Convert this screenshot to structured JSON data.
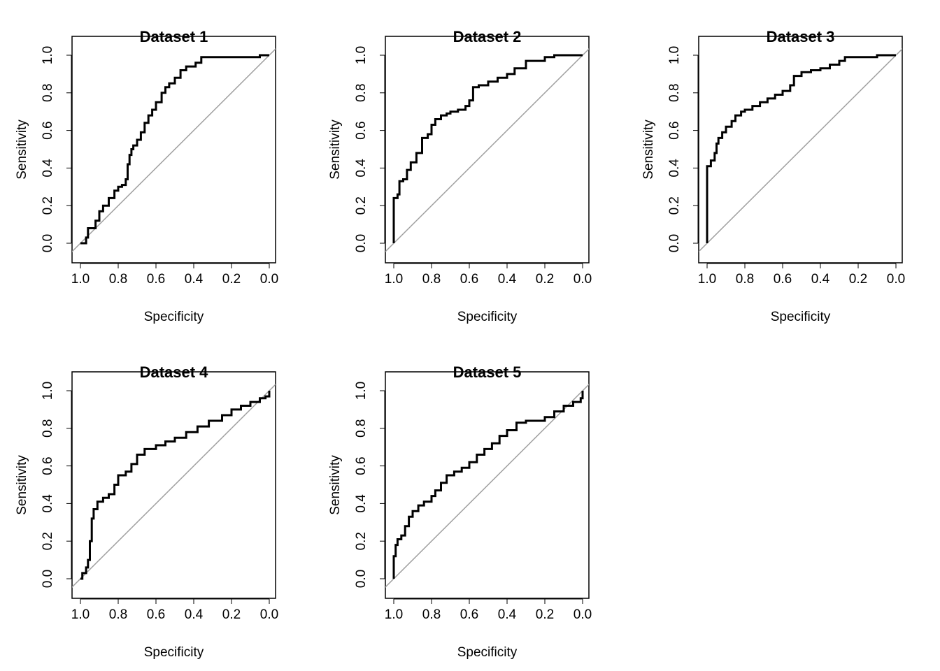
{
  "chart_data": [
    {
      "type": "line",
      "title": "Dataset 1",
      "xlabel": "Specificity",
      "ylabel": "Sensitivity",
      "xlim": [
        1.0,
        0.0
      ],
      "ylim": [
        0.0,
        1.0
      ],
      "x_ticks": [
        "1.0",
        "0.8",
        "0.6",
        "0.4",
        "0.2",
        "0.0"
      ],
      "y_ticks": [
        "0.0",
        "0.2",
        "0.4",
        "0.6",
        "0.8",
        "1.0"
      ],
      "reference_line": "diagonal",
      "series": [
        {
          "x": [
            1.0,
            0.97,
            0.96,
            0.92,
            0.9,
            0.88,
            0.85,
            0.82,
            0.8,
            0.78,
            0.76,
            0.75,
            0.74,
            0.73,
            0.72,
            0.7,
            0.68,
            0.66,
            0.64,
            0.62,
            0.6,
            0.57,
            0.55,
            0.53,
            0.5,
            0.47,
            0.44,
            0.42,
            0.39,
            0.36,
            0.34,
            0.3,
            0.2,
            0.1,
            0.05,
            0.02,
            0.0
          ],
          "y": [
            0.0,
            0.03,
            0.08,
            0.12,
            0.17,
            0.2,
            0.24,
            0.28,
            0.3,
            0.31,
            0.34,
            0.42,
            0.47,
            0.5,
            0.52,
            0.55,
            0.59,
            0.64,
            0.68,
            0.71,
            0.75,
            0.8,
            0.83,
            0.85,
            0.88,
            0.92,
            0.94,
            0.94,
            0.96,
            0.99,
            0.99,
            0.99,
            0.99,
            0.99,
            1.0,
            1.0,
            1.0
          ]
        }
      ]
    },
    {
      "type": "line",
      "title": "Dataset 2",
      "xlabel": "Specificity",
      "ylabel": "Sensitivity",
      "xlim": [
        1.0,
        0.0
      ],
      "ylim": [
        0.0,
        1.0
      ],
      "x_ticks": [
        "1.0",
        "0.8",
        "0.6",
        "0.4",
        "0.2",
        "0.0"
      ],
      "y_ticks": [
        "0.0",
        "0.2",
        "0.4",
        "0.6",
        "0.8",
        "1.0"
      ],
      "reference_line": "diagonal",
      "series": [
        {
          "x": [
            1.0,
            1.0,
            0.98,
            0.97,
            0.95,
            0.93,
            0.91,
            0.88,
            0.85,
            0.82,
            0.8,
            0.78,
            0.75,
            0.72,
            0.7,
            0.66,
            0.62,
            0.6,
            0.58,
            0.55,
            0.5,
            0.45,
            0.4,
            0.36,
            0.3,
            0.2,
            0.15,
            0.05,
            0.0
          ],
          "y": [
            0.0,
            0.24,
            0.26,
            0.33,
            0.34,
            0.39,
            0.43,
            0.48,
            0.56,
            0.58,
            0.63,
            0.66,
            0.68,
            0.69,
            0.7,
            0.71,
            0.73,
            0.76,
            0.83,
            0.84,
            0.86,
            0.88,
            0.9,
            0.93,
            0.97,
            0.99,
            1.0,
            1.0,
            1.0
          ]
        }
      ]
    },
    {
      "type": "line",
      "title": "Dataset 3",
      "xlabel": "Specificity",
      "ylabel": "Sensitivity",
      "xlim": [
        1.0,
        0.0
      ],
      "ylim": [
        0.0,
        1.0
      ],
      "x_ticks": [
        "1.0",
        "0.8",
        "0.6",
        "0.4",
        "0.2",
        "0.0"
      ],
      "y_ticks": [
        "0.0",
        "0.2",
        "0.4",
        "0.6",
        "0.8",
        "1.0"
      ],
      "reference_line": "diagonal",
      "series": [
        {
          "x": [
            1.0,
            1.0,
            0.98,
            0.96,
            0.95,
            0.94,
            0.92,
            0.9,
            0.87,
            0.85,
            0.82,
            0.8,
            0.76,
            0.72,
            0.68,
            0.64,
            0.6,
            0.56,
            0.54,
            0.5,
            0.45,
            0.4,
            0.35,
            0.3,
            0.27,
            0.2,
            0.1,
            0.05,
            0.0
          ],
          "y": [
            0.0,
            0.41,
            0.44,
            0.48,
            0.53,
            0.56,
            0.59,
            0.62,
            0.65,
            0.68,
            0.7,
            0.71,
            0.73,
            0.75,
            0.77,
            0.79,
            0.81,
            0.84,
            0.89,
            0.91,
            0.92,
            0.93,
            0.95,
            0.97,
            0.99,
            0.99,
            1.0,
            1.0,
            1.0
          ]
        }
      ]
    },
    {
      "type": "line",
      "title": "Dataset 4",
      "xlabel": "Specificity",
      "ylabel": "Sensitivity",
      "xlim": [
        1.0,
        0.0
      ],
      "ylim": [
        0.0,
        1.0
      ],
      "x_ticks": [
        "1.0",
        "0.8",
        "0.6",
        "0.4",
        "0.2",
        "0.0"
      ],
      "y_ticks": [
        "0.0",
        "0.2",
        "0.4",
        "0.6",
        "0.8",
        "1.0"
      ],
      "reference_line": "diagonal",
      "series": [
        {
          "x": [
            1.0,
            0.99,
            0.97,
            0.96,
            0.95,
            0.94,
            0.93,
            0.91,
            0.88,
            0.85,
            0.82,
            0.8,
            0.76,
            0.73,
            0.7,
            0.66,
            0.6,
            0.55,
            0.5,
            0.44,
            0.38,
            0.32,
            0.25,
            0.2,
            0.15,
            0.1,
            0.05,
            0.02,
            0.0,
            0.0
          ],
          "y": [
            0.0,
            0.03,
            0.06,
            0.1,
            0.2,
            0.32,
            0.37,
            0.41,
            0.43,
            0.45,
            0.5,
            0.55,
            0.57,
            0.61,
            0.66,
            0.69,
            0.71,
            0.73,
            0.75,
            0.78,
            0.81,
            0.84,
            0.87,
            0.9,
            0.92,
            0.94,
            0.96,
            0.97,
            0.98,
            1.0
          ]
        }
      ]
    },
    {
      "type": "line",
      "title": "Dataset 5",
      "xlabel": "Specificity",
      "ylabel": "Sensitivity",
      "xlim": [
        1.0,
        0.0
      ],
      "ylim": [
        0.0,
        1.0
      ],
      "x_ticks": [
        "1.0",
        "0.8",
        "0.6",
        "0.4",
        "0.2",
        "0.0"
      ],
      "y_ticks": [
        "0.0",
        "0.2",
        "0.4",
        "0.6",
        "0.8",
        "1.0"
      ],
      "reference_line": "diagonal",
      "series": [
        {
          "x": [
            1.0,
            1.0,
            0.99,
            0.98,
            0.96,
            0.94,
            0.92,
            0.9,
            0.87,
            0.84,
            0.8,
            0.78,
            0.75,
            0.72,
            0.68,
            0.64,
            0.6,
            0.56,
            0.52,
            0.48,
            0.44,
            0.4,
            0.35,
            0.3,
            0.25,
            0.2,
            0.15,
            0.1,
            0.05,
            0.01,
            0.0
          ],
          "y": [
            0.0,
            0.12,
            0.18,
            0.21,
            0.23,
            0.28,
            0.33,
            0.36,
            0.39,
            0.41,
            0.44,
            0.47,
            0.51,
            0.55,
            0.57,
            0.59,
            0.62,
            0.66,
            0.69,
            0.72,
            0.76,
            0.79,
            0.83,
            0.84,
            0.84,
            0.86,
            0.89,
            0.92,
            0.94,
            0.96,
            1.0
          ]
        }
      ]
    }
  ]
}
